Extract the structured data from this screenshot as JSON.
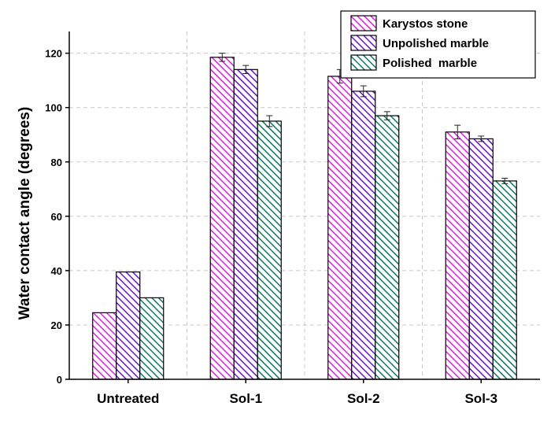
{
  "chart_data": {
    "type": "bar",
    "title": "",
    "xlabel": "",
    "ylabel": "Water contact angle (degrees)",
    "categories": [
      "Untreated",
      "Sol-1",
      "Sol-2",
      "Sol-3"
    ],
    "yticks": [
      "0",
      "20",
      "40",
      "60",
      "80",
      "100",
      "120"
    ],
    "ylim": [
      0,
      128
    ],
    "grid": "dashed",
    "legend_position": "top-right",
    "series": [
      {
        "name": "Karystos stone",
        "color": "#e21de2",
        "values": [
          24.5,
          118.5,
          111.5,
          91
        ],
        "errors": [
          0,
          1.5,
          2.5,
          2.5
        ]
      },
      {
        "name": "Unpolished marble",
        "color": "#6a12d6",
        "values": [
          39.5,
          114,
          106,
          88.5
        ],
        "errors": [
          0,
          1.5,
          2,
          1
        ]
      },
      {
        "name": "Polished  marble",
        "color": "#0b7a63",
        "values": [
          30,
          95,
          97,
          73
        ],
        "errors": [
          0,
          2,
          1.5,
          1
        ]
      }
    ]
  }
}
